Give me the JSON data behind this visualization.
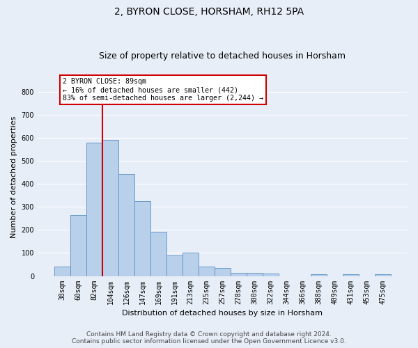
{
  "title": "2, BYRON CLOSE, HORSHAM, RH12 5PA",
  "subtitle": "Size of property relative to detached houses in Horsham",
  "xlabel": "Distribution of detached houses by size in Horsham",
  "ylabel": "Number of detached properties",
  "footer_line1": "Contains HM Land Registry data © Crown copyright and database right 2024.",
  "footer_line2": "Contains public sector information licensed under the Open Government Licence v3.0.",
  "categories": [
    "38sqm",
    "60sqm",
    "82sqm",
    "104sqm",
    "126sqm",
    "147sqm",
    "169sqm",
    "191sqm",
    "213sqm",
    "235sqm",
    "257sqm",
    "278sqm",
    "300sqm",
    "322sqm",
    "344sqm",
    "366sqm",
    "388sqm",
    "409sqm",
    "431sqm",
    "453sqm",
    "475sqm"
  ],
  "values": [
    40,
    263,
    577,
    592,
    444,
    325,
    193,
    90,
    100,
    42,
    35,
    15,
    15,
    10,
    0,
    0,
    7,
    0,
    8,
    0,
    7
  ],
  "bar_color": "#b8d0ea",
  "bar_edge_color": "#5a8fc4",
  "vline_x_index": 2,
  "vline_color": "#cc0000",
  "annotation_text": "2 BYRON CLOSE: 89sqm\n← 16% of detached houses are smaller (442)\n83% of semi-detached houses are larger (2,244) →",
  "annotation_box_color": "#ffffff",
  "annotation_box_edge": "#cc0000",
  "ylim": [
    0,
    860
  ],
  "yticks": [
    0,
    100,
    200,
    300,
    400,
    500,
    600,
    700,
    800
  ],
  "background_color": "#e8eef8",
  "grid_color": "#ffffff",
  "title_fontsize": 10,
  "subtitle_fontsize": 9,
  "axis_label_fontsize": 8,
  "tick_fontsize": 7,
  "footer_fontsize": 6.5
}
